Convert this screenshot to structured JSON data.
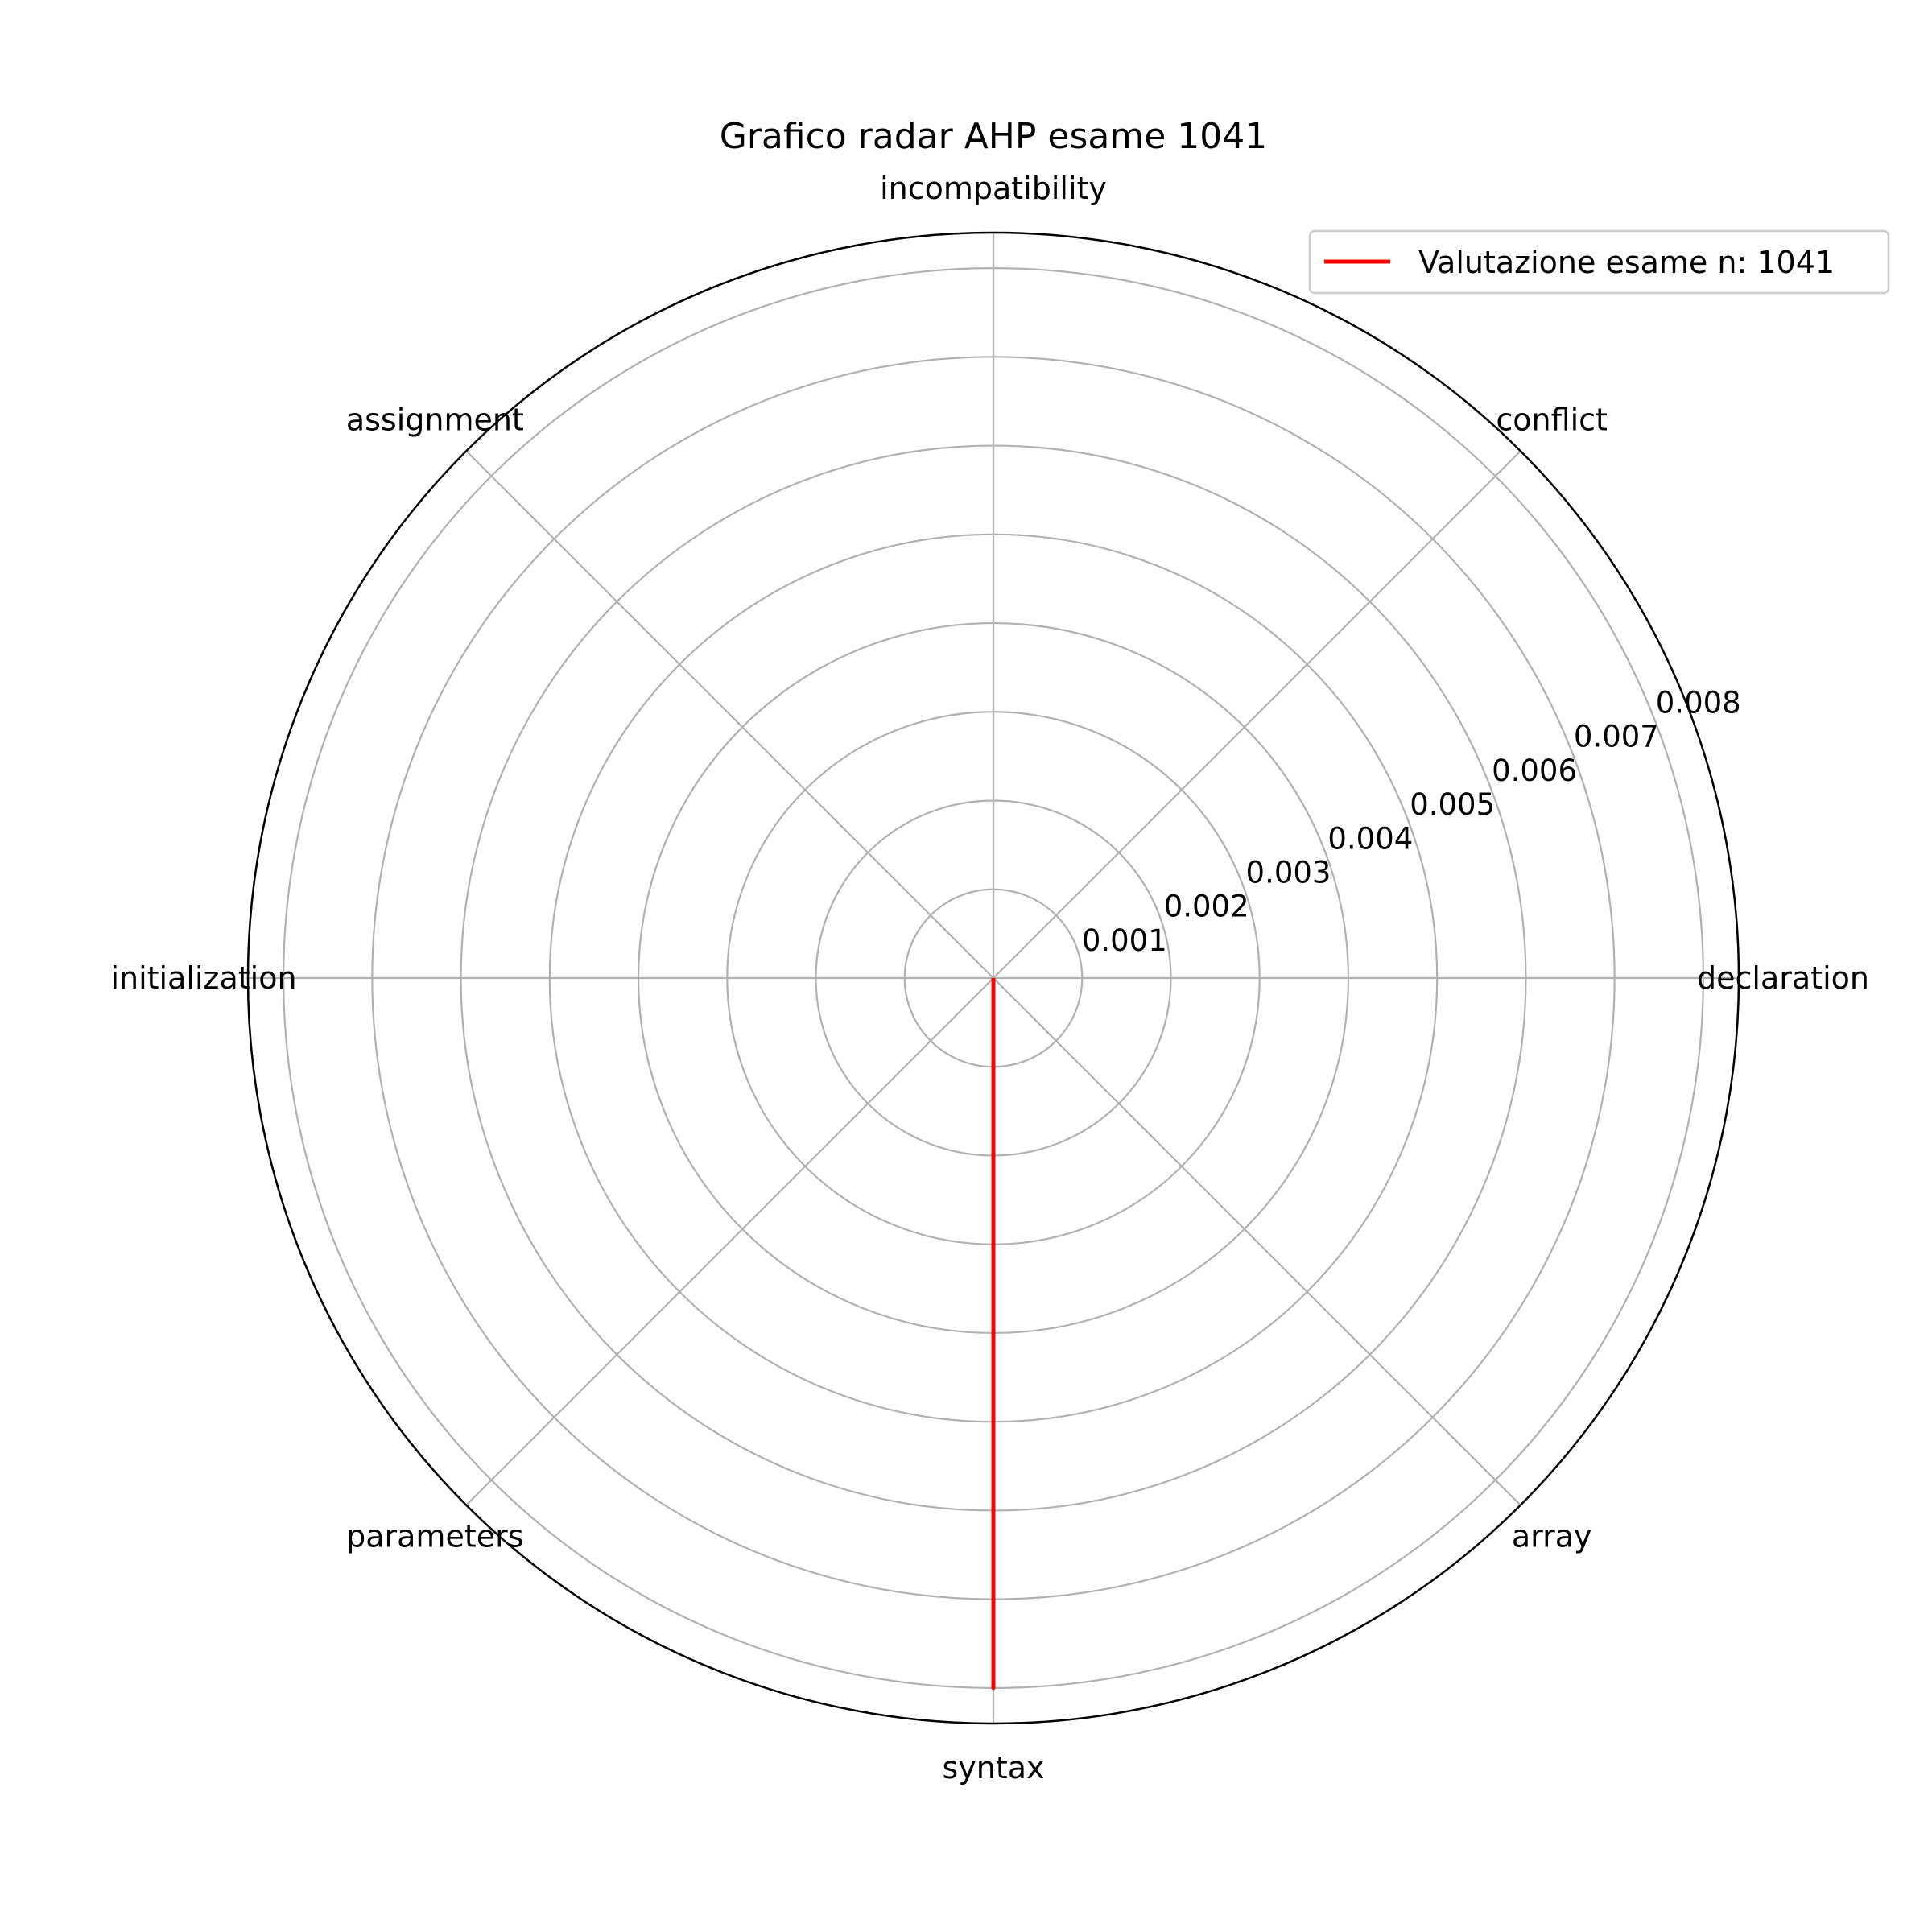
{
  "chart_data": {
    "type": "radar",
    "title": "Grafico radar AHP esame 1041",
    "categories": [
      "declaration",
      "conflict",
      "incompatibility",
      "assignment",
      "initialization",
      "parameters",
      "syntax",
      "array"
    ],
    "series": [
      {
        "name": "Valutazione esame n: 1041",
        "color": "#ff0000",
        "values": [
          0,
          0,
          0,
          0,
          0,
          0,
          0.008,
          0
        ]
      }
    ],
    "rticks": [
      0.001,
      0.002,
      0.003,
      0.004,
      0.005,
      0.006,
      0.007,
      0.008
    ],
    "rtick_labels": [
      "0.001",
      "0.002",
      "0.003",
      "0.004",
      "0.005",
      "0.006",
      "0.007",
      "0.008"
    ],
    "rlim": [
      0,
      0.0084
    ],
    "grid": true,
    "legend_position": "top-right"
  }
}
